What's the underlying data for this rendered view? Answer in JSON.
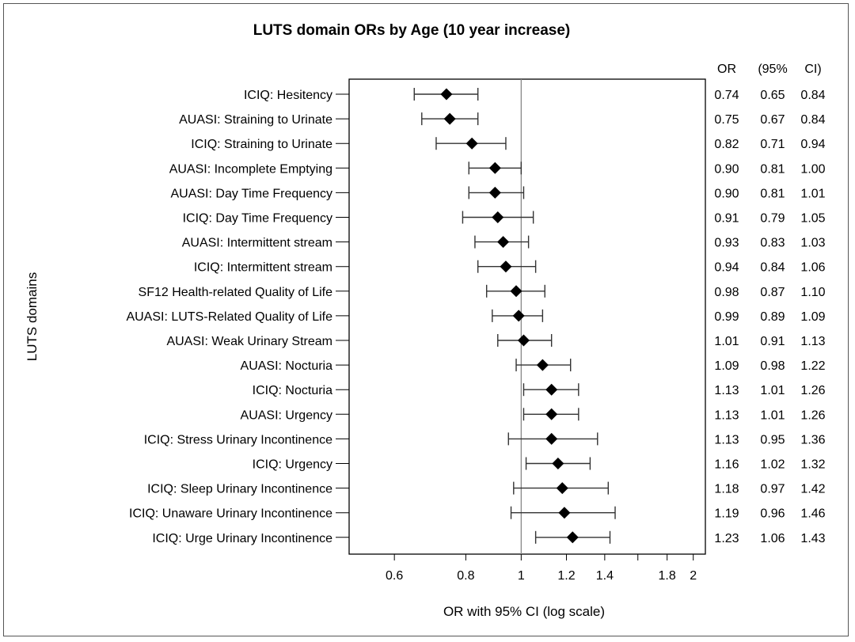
{
  "chart_data": {
    "type": "forest",
    "title": "LUTS domain ORs by Age (10 year increase)",
    "xlabel": "OR with 95% CI (log scale)",
    "ylabel": "LUTS domains",
    "x_scale": "log",
    "xlim": [
      0.5,
      2.1
    ],
    "x_ticks": [
      {
        "value": 0.6,
        "label": "0.6"
      },
      {
        "value": 0.8,
        "label": "0.8"
      },
      {
        "value": 1.0,
        "label": "1"
      },
      {
        "value": 1.2,
        "label": "1.2"
      },
      {
        "value": 1.4,
        "label": "1.4"
      },
      {
        "value": 1.6,
        "label": ""
      },
      {
        "value": 1.8,
        "label": "1.8"
      },
      {
        "value": 2.0,
        "label": "2"
      }
    ],
    "reference_line": 1.0,
    "table_headers": [
      "OR",
      "(95%",
      "CI)"
    ],
    "rows": [
      {
        "label": "ICIQ: Hesitency",
        "or": 0.74,
        "lo": 0.65,
        "hi": 0.84,
        "or_text": "0.74",
        "lo_text": "0.65",
        "hi_text": "0.84"
      },
      {
        "label": "AUASI: Straining to Urinate",
        "or": 0.75,
        "lo": 0.67,
        "hi": 0.84,
        "or_text": "0.75",
        "lo_text": "0.67",
        "hi_text": "0.84"
      },
      {
        "label": "ICIQ: Straining to Urinate",
        "or": 0.82,
        "lo": 0.71,
        "hi": 0.94,
        "or_text": "0.82",
        "lo_text": "0.71",
        "hi_text": "0.94"
      },
      {
        "label": "AUASI: Incomplete Emptying",
        "or": 0.9,
        "lo": 0.81,
        "hi": 1.0,
        "or_text": "0.90",
        "lo_text": "0.81",
        "hi_text": "1.00"
      },
      {
        "label": "AUASI: Day Time Frequency",
        "or": 0.9,
        "lo": 0.81,
        "hi": 1.01,
        "or_text": "0.90",
        "lo_text": "0.81",
        "hi_text": "1.01"
      },
      {
        "label": "ICIQ: Day Time Frequency",
        "or": 0.91,
        "lo": 0.79,
        "hi": 1.05,
        "or_text": "0.91",
        "lo_text": "0.79",
        "hi_text": "1.05"
      },
      {
        "label": "AUASI: Intermittent stream",
        "or": 0.93,
        "lo": 0.83,
        "hi": 1.03,
        "or_text": "0.93",
        "lo_text": "0.83",
        "hi_text": "1.03"
      },
      {
        "label": "ICIQ: Intermittent stream",
        "or": 0.94,
        "lo": 0.84,
        "hi": 1.06,
        "or_text": "0.94",
        "lo_text": "0.84",
        "hi_text": "1.06"
      },
      {
        "label": "SF12 Health-related Quality of Life",
        "or": 0.98,
        "lo": 0.87,
        "hi": 1.1,
        "or_text": "0.98",
        "lo_text": "0.87",
        "hi_text": "1.10"
      },
      {
        "label": "AUASI: LUTS-Related Quality of Life",
        "or": 0.99,
        "lo": 0.89,
        "hi": 1.09,
        "or_text": "0.99",
        "lo_text": "0.89",
        "hi_text": "1.09"
      },
      {
        "label": "AUASI: Weak Urinary Stream",
        "or": 1.01,
        "lo": 0.91,
        "hi": 1.13,
        "or_text": "1.01",
        "lo_text": "0.91",
        "hi_text": "1.13"
      },
      {
        "label": "AUASI: Nocturia",
        "or": 1.09,
        "lo": 0.98,
        "hi": 1.22,
        "or_text": "1.09",
        "lo_text": "0.98",
        "hi_text": "1.22"
      },
      {
        "label": "ICIQ: Nocturia",
        "or": 1.13,
        "lo": 1.01,
        "hi": 1.26,
        "or_text": "1.13",
        "lo_text": "1.01",
        "hi_text": "1.26"
      },
      {
        "label": "AUASI: Urgency",
        "or": 1.13,
        "lo": 1.01,
        "hi": 1.26,
        "or_text": "1.13",
        "lo_text": "1.01",
        "hi_text": "1.26"
      },
      {
        "label": "ICIQ: Stress Urinary Incontinence",
        "or": 1.13,
        "lo": 0.95,
        "hi": 1.36,
        "or_text": "1.13",
        "lo_text": "0.95",
        "hi_text": "1.36"
      },
      {
        "label": "ICIQ: Urgency",
        "or": 1.16,
        "lo": 1.02,
        "hi": 1.32,
        "or_text": "1.16",
        "lo_text": "1.02",
        "hi_text": "1.32"
      },
      {
        "label": "ICIQ: Sleep Urinary Incontinence",
        "or": 1.18,
        "lo": 0.97,
        "hi": 1.42,
        "or_text": "1.18",
        "lo_text": "0.97",
        "hi_text": "1.42"
      },
      {
        "label": "ICIQ: Unaware Urinary Incontinence",
        "or": 1.19,
        "lo": 0.96,
        "hi": 1.46,
        "or_text": "1.19",
        "lo_text": "0.96",
        "hi_text": "1.46"
      },
      {
        "label": "ICIQ: Urge Urinary Incontinence",
        "or": 1.23,
        "lo": 1.06,
        "hi": 1.43,
        "or_text": "1.23",
        "lo_text": "1.06",
        "hi_text": "1.43"
      }
    ]
  }
}
